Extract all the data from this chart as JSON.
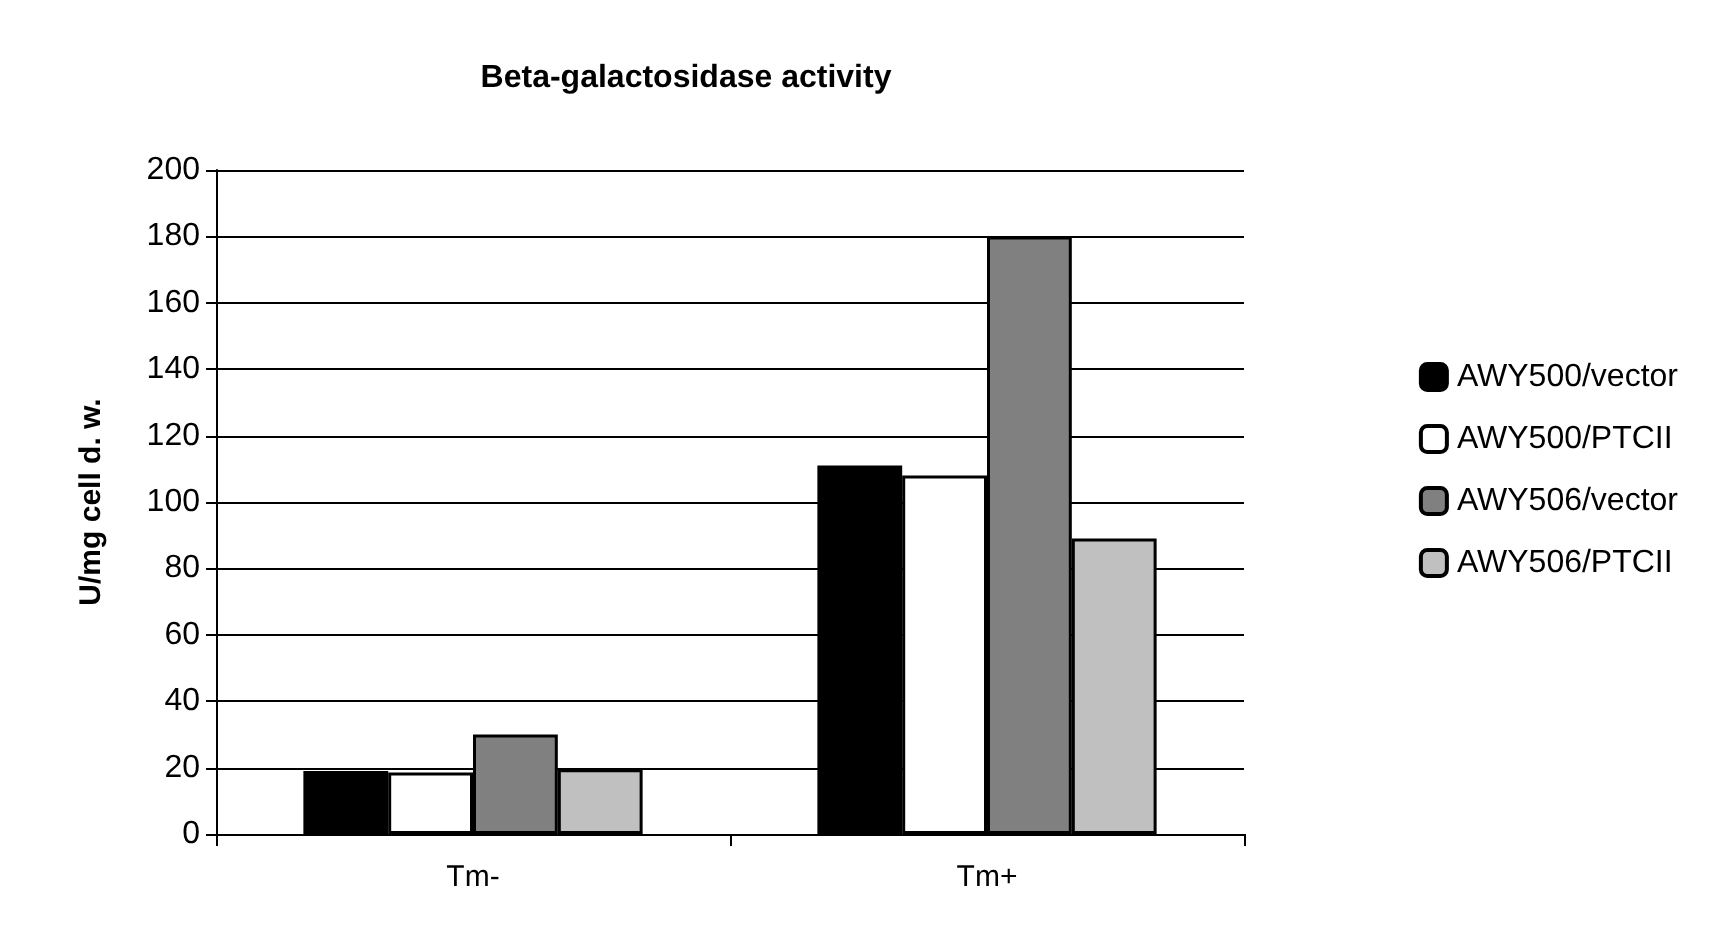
{
  "chart_data": {
    "type": "bar",
    "title": "Beta-galactosidase activity",
    "ylabel": "U/mg cell d. w.",
    "categories": [
      "Tm-",
      "Tm+"
    ],
    "series": [
      {
        "name": "AWY500/vector",
        "color": "#000000",
        "values": [
          19,
          111
        ]
      },
      {
        "name": "AWY500/PTCII",
        "color": "#ffffff",
        "values": [
          18.5,
          108
        ]
      },
      {
        "name": "AWY506/vector",
        "color": "#808080",
        "values": [
          30,
          180
        ]
      },
      {
        "name": "AWY506/PTCII",
        "color": "#c0c0c0",
        "values": [
          19.5,
          89
        ]
      }
    ],
    "ylim": [
      0,
      200
    ],
    "yticks": [
      0,
      20,
      40,
      60,
      80,
      100,
      120,
      140,
      160,
      180,
      200
    ],
    "grid": "y",
    "legend": "right"
  }
}
